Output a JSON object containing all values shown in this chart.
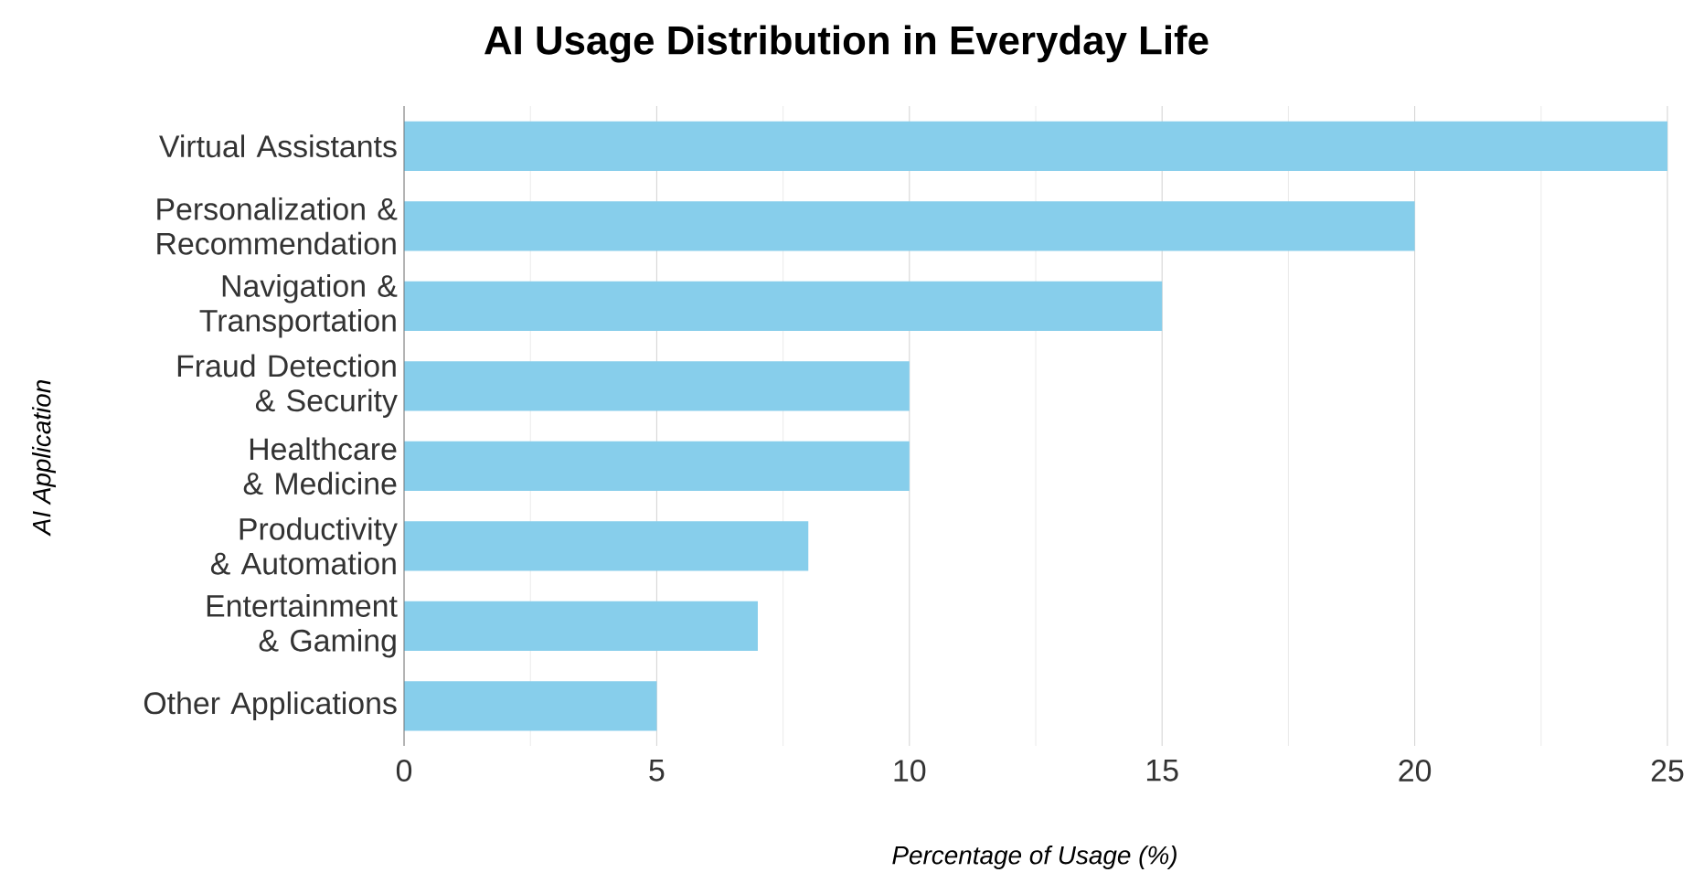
{
  "chart_data": {
    "type": "bar",
    "orientation": "horizontal",
    "title": "AI Usage Distribution in Everyday Life",
    "xlabel": "Percentage of Usage (%)",
    "ylabel": "AI Application",
    "categories": [
      "Virtual Assistants",
      "Personalization & Recommendation",
      "Navigation & Transportation",
      "Fraud Detection & Security",
      "Healthcare & Medicine",
      "Productivity & Automation",
      "Entertainment & Gaming",
      "Other Applications"
    ],
    "values": [
      25,
      20,
      15,
      10,
      10,
      8,
      7,
      5
    ],
    "color": "#87ceeb",
    "xlim": [
      0,
      25
    ],
    "xticks": [
      0,
      {
        "value": 2.5,
        "label": null
      },
      5,
      {
        "value": 7.5,
        "label": null
      },
      10,
      {
        "value": 12.5,
        "label": null
      },
      15,
      {
        "value": 17.5,
        "label": null
      },
      20,
      {
        "value": 22.5,
        "label": null
      },
      25
    ],
    "grid": "x"
  }
}
